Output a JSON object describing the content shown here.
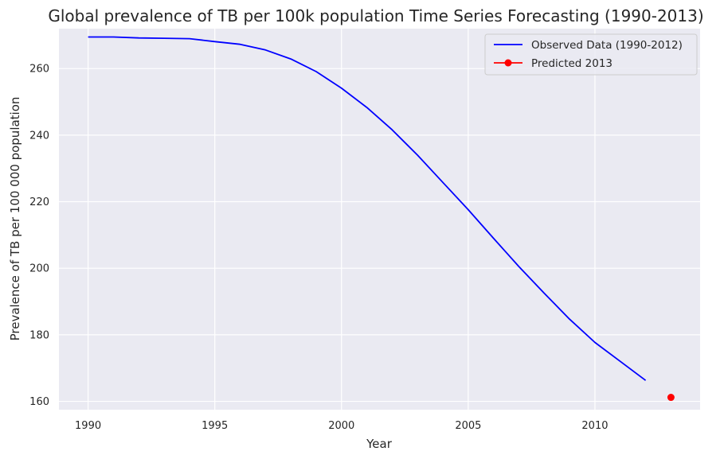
{
  "chart_data": {
    "type": "line",
    "title": "Global prevalence of TB per 100k population Time Series Forecasting (1990-2013)",
    "xlabel": "Year",
    "ylabel": "Prevalence of TB per 100 000 population",
    "xlim": [
      1988.85,
      2014.15
    ],
    "ylim": [
      157.5,
      272
    ],
    "xticks": [
      1990,
      1995,
      2000,
      2005,
      2010
    ],
    "yticks": [
      160,
      180,
      200,
      220,
      240,
      260
    ],
    "grid": true,
    "legend_position": "top-right",
    "series": [
      {
        "name": "Observed Data (1990-2012)",
        "color": "#0000ff",
        "marker": "none",
        "x": [
          1990,
          1991,
          1992,
          1993,
          1994,
          1995,
          1996,
          1997,
          1998,
          1999,
          2000,
          2001,
          2002,
          2003,
          2004,
          2005,
          2006,
          2007,
          2008,
          2009,
          2010,
          2011,
          2012
        ],
        "y": [
          269.5,
          269.5,
          269.2,
          269.1,
          269.0,
          268.1,
          267.3,
          265.6,
          262.9,
          259.1,
          254.1,
          248.3,
          241.6,
          234.0,
          225.8,
          217.6,
          209.0,
          200.5,
          192.5,
          184.7,
          177.7,
          172.0,
          166.3
        ]
      },
      {
        "name": "Predicted 2013",
        "color": "#ff0000",
        "marker": "circle",
        "x": [
          2013
        ],
        "y": [
          161.2
        ]
      }
    ]
  }
}
